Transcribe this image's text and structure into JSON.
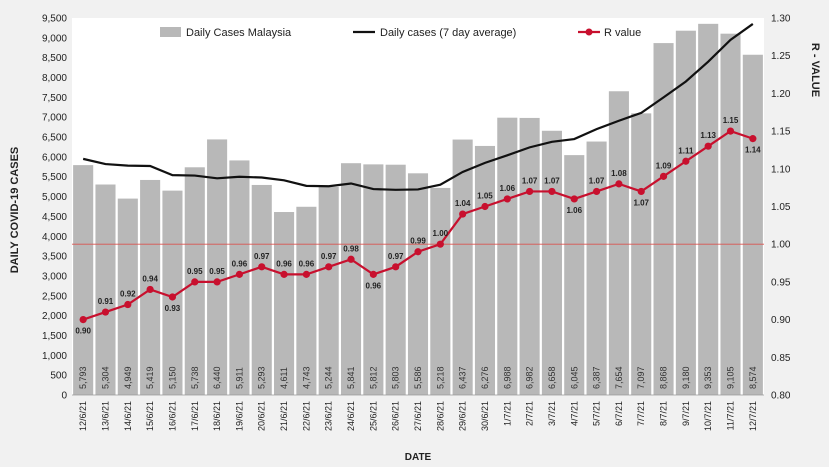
{
  "chart_data": {
    "type": "bar",
    "title": "",
    "xlabel": "DATE",
    "ylabel": "DAILY COVID-19 CASES",
    "y2label": "R - VALUE",
    "ylim": [
      0,
      9500
    ],
    "y_ticks": [
      "0",
      "500",
      "1,000",
      "1,500",
      "2,000",
      "2,500",
      "3,000",
      "3,500",
      "4,000",
      "4,500",
      "5,000",
      "5,500",
      "6,000",
      "6,500",
      "7,000",
      "7,500",
      "8,000",
      "8,500",
      "9,000",
      "9,500"
    ],
    "y2lim": [
      0.8,
      1.3
    ],
    "y2_ticks": [
      "0.80",
      "0.85",
      "0.90",
      "0.95",
      "1.00",
      "1.05",
      "1.10",
      "1.15",
      "1.20",
      "1.25",
      "1.30"
    ],
    "reference_line_r": 1.0,
    "categories": [
      "12/6/21",
      "13/6/21",
      "14/6/21",
      "15/6/21",
      "16/6/21",
      "17/6/21",
      "18/6/21",
      "19/6/21",
      "20/6/21",
      "21/6/21",
      "22/6/21",
      "23/6/21",
      "24/6/21",
      "25/6/21",
      "26/6/21",
      "27/6/21",
      "28/6/21",
      "29/6/21",
      "30/6/21",
      "1/7/21",
      "2/7/21",
      "3/7/21",
      "4/7/21",
      "5/7/21",
      "6/7/21",
      "7/7/21",
      "8/7/21",
      "9/7/21",
      "10/7/21",
      "11/7/21",
      "12/7/21"
    ],
    "series": [
      {
        "name": "Daily Cases Malaysia",
        "kind": "bar",
        "color": "#b8b8b8",
        "values": [
          5793,
          5304,
          4949,
          5419,
          5150,
          5738,
          6440,
          5911,
          5293,
          4611,
          4743,
          5244,
          5841,
          5812,
          5803,
          5586,
          5218,
          6437,
          6276,
          6988,
          6982,
          6658,
          6045,
          6387,
          7654,
          7097,
          8868,
          9180,
          9353,
          9105,
          8574
        ],
        "labels": [
          "5,793",
          "5,304",
          "4,949",
          "5,419",
          "5,150",
          "5,738",
          "6,440",
          "5,911",
          "5,293",
          "4,611",
          "4,743",
          "5,244",
          "5,841",
          "5,812",
          "5,803",
          "5,586",
          "5,218",
          "6,437",
          "6,276",
          "6,988",
          "6,982",
          "6,658",
          "6,045",
          "6,387",
          "7,654",
          "7,097",
          "8,868",
          "9,180",
          "9,353",
          "9,105",
          "8,574"
        ]
      },
      {
        "name": "Daily cases (7 day average)",
        "kind": "line",
        "color": "#111111",
        "values": [
          5950,
          5820,
          5780,
          5770,
          5540,
          5530,
          5460,
          5500,
          5480,
          5410,
          5270,
          5260,
          5330,
          5190,
          5170,
          5180,
          5300,
          5620,
          5850,
          6040,
          6240,
          6380,
          6450,
          6700,
          6910,
          7110,
          7500,
          7900,
          8400,
          8950,
          9350
        ]
      },
      {
        "name": "R value",
        "kind": "line",
        "axis": "right",
        "color": "#c8102e",
        "values": [
          0.9,
          0.91,
          0.92,
          0.94,
          0.93,
          0.95,
          0.95,
          0.96,
          0.97,
          0.96,
          0.96,
          0.97,
          0.98,
          0.96,
          0.97,
          0.99,
          1.0,
          1.04,
          1.05,
          1.06,
          1.07,
          1.07,
          1.06,
          1.07,
          1.08,
          1.07,
          1.09,
          1.11,
          1.13,
          1.15,
          1.14
        ],
        "labels": [
          "0.90",
          "0.91",
          "0.92",
          "0.94",
          "0.93",
          "0.95",
          "0.95",
          "0.96",
          "0.97",
          "0.96",
          "0.96",
          "0.97",
          "0.98",
          "0.96",
          "0.97",
          "0.99",
          "1.00",
          "1.04",
          "1.05",
          "1.06",
          "1.07",
          "1.07",
          "1.06",
          "1.07",
          "1.08",
          "1.07",
          "1.09",
          "1.11",
          "1.13",
          "1.15",
          "1.14"
        ]
      }
    ],
    "legend_position": "top"
  }
}
